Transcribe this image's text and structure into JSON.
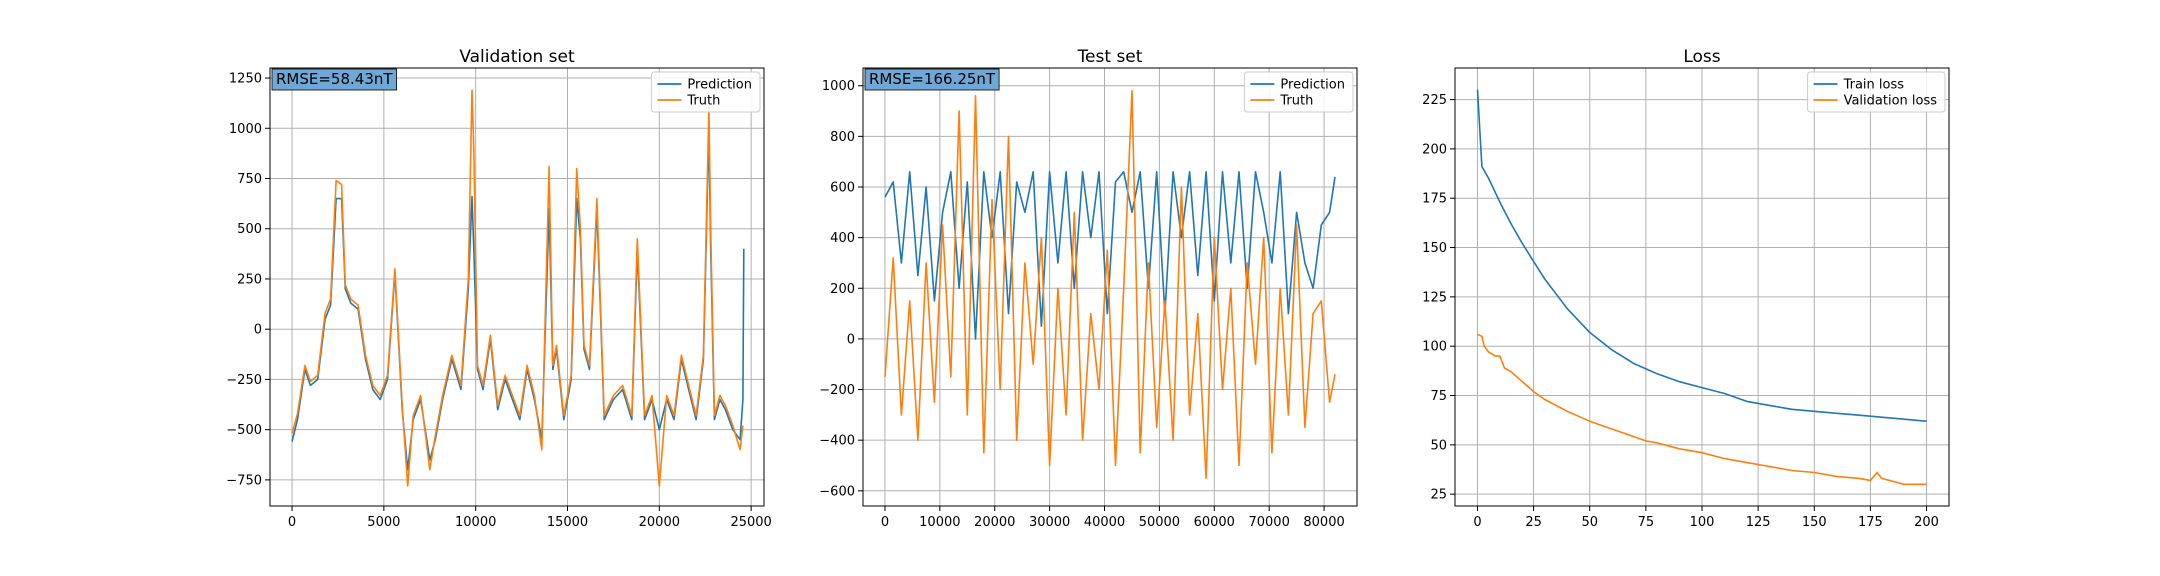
{
  "chart_data": [
    {
      "type": "line",
      "title": "Validation set",
      "annotation": "RMSE=58.43nT",
      "xlim": [
        -1200,
        25700
      ],
      "ylim": [
        -880,
        1300
      ],
      "xticks": [
        0,
        5000,
        10000,
        15000,
        20000,
        25000
      ],
      "xtick_labels": [
        "0",
        "5000",
        "10000",
        "15000",
        "20000",
        "25000"
      ],
      "yticks": [
        -750,
        -500,
        -250,
        0,
        250,
        500,
        750,
        1000,
        1250
      ],
      "ytick_labels": [
        "−750",
        "−500",
        "−250",
        "0",
        "250",
        "500",
        "750",
        "1000",
        "1250"
      ],
      "grid": true,
      "legend": "upper-right",
      "series": [
        {
          "name": "Prediction",
          "color": "#1f77b4",
          "x": [
            0,
            300,
            700,
            1000,
            1400,
            1800,
            2100,
            2400,
            2700,
            2900,
            3200,
            3600,
            4000,
            4400,
            4800,
            5200,
            5600,
            6000,
            6300,
            6600,
            7000,
            7500,
            7800,
            8200,
            8700,
            9200,
            9600,
            9800,
            9900,
            10100,
            10400,
            10800,
            11200,
            11600,
            12000,
            12400,
            12800,
            13200,
            13600,
            14000,
            14200,
            14400,
            14800,
            15200,
            15500,
            15700,
            15900,
            16200,
            16600,
            17000,
            17500,
            18000,
            18500,
            18800,
            19200,
            19600,
            20000,
            20400,
            20800,
            21200,
            21600,
            22000,
            22400,
            22700,
            22800,
            23000,
            23300,
            23600,
            24000,
            24400,
            24550,
            24600
          ],
          "y": [
            -560,
            -450,
            -200,
            -280,
            -250,
            50,
            120,
            650,
            650,
            200,
            130,
            100,
            -150,
            -300,
            -350,
            -250,
            280,
            -400,
            -700,
            -450,
            -350,
            -650,
            -550,
            -350,
            -150,
            -300,
            200,
            660,
            400,
            -200,
            -300,
            -50,
            -400,
            -250,
            -350,
            -450,
            -200,
            -350,
            -550,
            600,
            -200,
            -100,
            -450,
            -250,
            650,
            450,
            -100,
            -200,
            600,
            -450,
            -350,
            -300,
            -450,
            400,
            -450,
            -350,
            -500,
            -350,
            -450,
            -150,
            -300,
            -450,
            -150,
            1000,
            400,
            -450,
            -350,
            -400,
            -500,
            -550,
            -350,
            400
          ]
        },
        {
          "name": "Truth",
          "color": "#ff7f0e",
          "x": [
            0,
            300,
            700,
            1000,
            1400,
            1800,
            2100,
            2400,
            2700,
            2900,
            3200,
            3600,
            4000,
            4400,
            4800,
            5200,
            5600,
            6000,
            6300,
            6600,
            7000,
            7500,
            7800,
            8200,
            8700,
            9200,
            9600,
            9800,
            9900,
            10100,
            10400,
            10800,
            11200,
            11600,
            12000,
            12400,
            12800,
            13200,
            13600,
            14000,
            14200,
            14400,
            14800,
            15200,
            15500,
            15700,
            15900,
            16200,
            16600,
            17000,
            17500,
            18000,
            18500,
            18800,
            19200,
            19600,
            20000,
            20400,
            20800,
            21200,
            21600,
            22000,
            22400,
            22700,
            22800,
            23000,
            23300,
            23600,
            24000,
            24400,
            24550
          ],
          "y": [
            -520,
            -420,
            -180,
            -260,
            -230,
            80,
            150,
            740,
            720,
            220,
            150,
            120,
            -130,
            -280,
            -330,
            -230,
            300,
            -380,
            -780,
            -430,
            -330,
            -700,
            -530,
            -330,
            -130,
            -280,
            250,
            1190,
            900,
            -180,
            -280,
            -30,
            -380,
            -230,
            -330,
            -430,
            -180,
            -330,
            -600,
            810,
            -180,
            -80,
            -430,
            -230,
            800,
            500,
            -80,
            -180,
            650,
            -430,
            -330,
            -280,
            -430,
            450,
            -430,
            -330,
            -780,
            -330,
            -430,
            -130,
            -280,
            -430,
            -130,
            1100,
            500,
            -430,
            -330,
            -380,
            -480,
            -600,
            -480
          ]
        }
      ]
    },
    {
      "type": "line",
      "title": "Test set",
      "annotation": "RMSE=166.25nT",
      "xlim": [
        -4000,
        86000
      ],
      "ylim": [
        -660,
        1070
      ],
      "xticks": [
        0,
        10000,
        20000,
        30000,
        40000,
        50000,
        60000,
        70000,
        80000
      ],
      "xtick_labels": [
        "0",
        "10000",
        "20000",
        "30000",
        "40000",
        "50000",
        "60000",
        "70000",
        "80000"
      ],
      "yticks": [
        -600,
        -400,
        -200,
        0,
        200,
        400,
        600,
        800,
        1000
      ],
      "ytick_labels": [
        "−600",
        "−400",
        "−200",
        "0",
        "200",
        "400",
        "600",
        "800",
        "1000"
      ],
      "grid": true,
      "legend": "upper-right",
      "series": [
        {
          "name": "Prediction",
          "color": "#1f77b4",
          "x": [
            0,
            1500,
            3000,
            4500,
            6000,
            7500,
            9000,
            10500,
            12000,
            13500,
            15000,
            16500,
            18000,
            19500,
            21000,
            22500,
            24000,
            25500,
            27000,
            28500,
            30000,
            31500,
            33000,
            34500,
            36000,
            37500,
            39000,
            40500,
            42000,
            43500,
            45000,
            46500,
            48000,
            49500,
            51000,
            52500,
            54000,
            55500,
            57000,
            58500,
            60000,
            61500,
            63000,
            64500,
            66000,
            67500,
            69000,
            70500,
            72000,
            73500,
            75000,
            76500,
            78000,
            79500,
            81000,
            82000
          ],
          "y": [
            560,
            620,
            300,
            660,
            250,
            600,
            150,
            500,
            660,
            200,
            620,
            0,
            660,
            400,
            660,
            100,
            620,
            500,
            660,
            50,
            660,
            300,
            660,
            200,
            660,
            400,
            660,
            100,
            620,
            660,
            500,
            660,
            200,
            660,
            100,
            660,
            400,
            660,
            250,
            660,
            150,
            660,
            300,
            660,
            200,
            660,
            500,
            300,
            660,
            100,
            500,
            300,
            200,
            450,
            500,
            640
          ]
        },
        {
          "name": "Truth",
          "color": "#ff7f0e",
          "x": [
            0,
            1500,
            3000,
            4500,
            6000,
            7500,
            9000,
            10500,
            12000,
            13500,
            15000,
            16500,
            18000,
            19500,
            21000,
            22500,
            24000,
            25500,
            27000,
            28500,
            30000,
            31500,
            33000,
            34500,
            36000,
            37500,
            39000,
            40500,
            42000,
            43500,
            45000,
            46500,
            48000,
            49500,
            51000,
            52500,
            54000,
            55500,
            57000,
            58500,
            60000,
            61500,
            63000,
            64500,
            66000,
            67500,
            69000,
            70500,
            72000,
            73500,
            75000,
            76500,
            78000,
            79500,
            81000,
            82000
          ],
          "y": [
            -150,
            320,
            -300,
            150,
            -400,
            300,
            -250,
            450,
            -150,
            900,
            -300,
            960,
            -450,
            550,
            -200,
            800,
            -400,
            300,
            -100,
            400,
            -500,
            200,
            -300,
            500,
            -400,
            100,
            -200,
            350,
            -500,
            200,
            980,
            -450,
            300,
            -350,
            150,
            -400,
            600,
            -300,
            100,
            -550,
            400,
            -200,
            200,
            -500,
            300,
            -100,
            400,
            -450,
            200,
            -300,
            450,
            -350,
            100,
            150,
            -250,
            -140
          ]
        }
      ]
    },
    {
      "type": "line",
      "title": "Loss",
      "xlim": [
        -10,
        210
      ],
      "ylim": [
        19,
        241
      ],
      "xticks": [
        0,
        25,
        50,
        75,
        100,
        125,
        150,
        175,
        200
      ],
      "xtick_labels": [
        "0",
        "25",
        "50",
        "75",
        "100",
        "125",
        "150",
        "175",
        "200"
      ],
      "yticks": [
        25,
        50,
        75,
        100,
        125,
        150,
        175,
        200,
        225
      ],
      "ytick_labels": [
        "25",
        "50",
        "75",
        "100",
        "125",
        "150",
        "175",
        "200",
        "225"
      ],
      "grid": true,
      "legend": "upper-right",
      "series": [
        {
          "name": "Train loss",
          "color": "#1f77b4",
          "x": [
            0,
            2,
            5,
            10,
            15,
            20,
            25,
            30,
            40,
            50,
            60,
            70,
            80,
            90,
            100,
            110,
            120,
            130,
            140,
            150,
            160,
            170,
            180,
            190,
            200
          ],
          "y": [
            230,
            191,
            185,
            173,
            162,
            152,
            143,
            134,
            119,
            107,
            98,
            91,
            86,
            82,
            79,
            76,
            72,
            70,
            68,
            67,
            66,
            65,
            64,
            63,
            62
          ]
        },
        {
          "name": "Validation loss",
          "color": "#ff7f0e",
          "x": [
            0,
            2,
            3,
            5,
            8,
            10,
            12,
            15,
            20,
            25,
            30,
            40,
            50,
            60,
            70,
            75,
            80,
            90,
            100,
            110,
            120,
            130,
            140,
            150,
            160,
            170,
            175,
            178,
            180,
            190,
            200
          ],
          "y": [
            106,
            105,
            100,
            97,
            95,
            95,
            89,
            87,
            82,
            77,
            73,
            67,
            62,
            58,
            54,
            52,
            51,
            48,
            46,
            43,
            41,
            39,
            37,
            36,
            34,
            33,
            32,
            36,
            33,
            30,
            30
          ]
        }
      ]
    }
  ]
}
